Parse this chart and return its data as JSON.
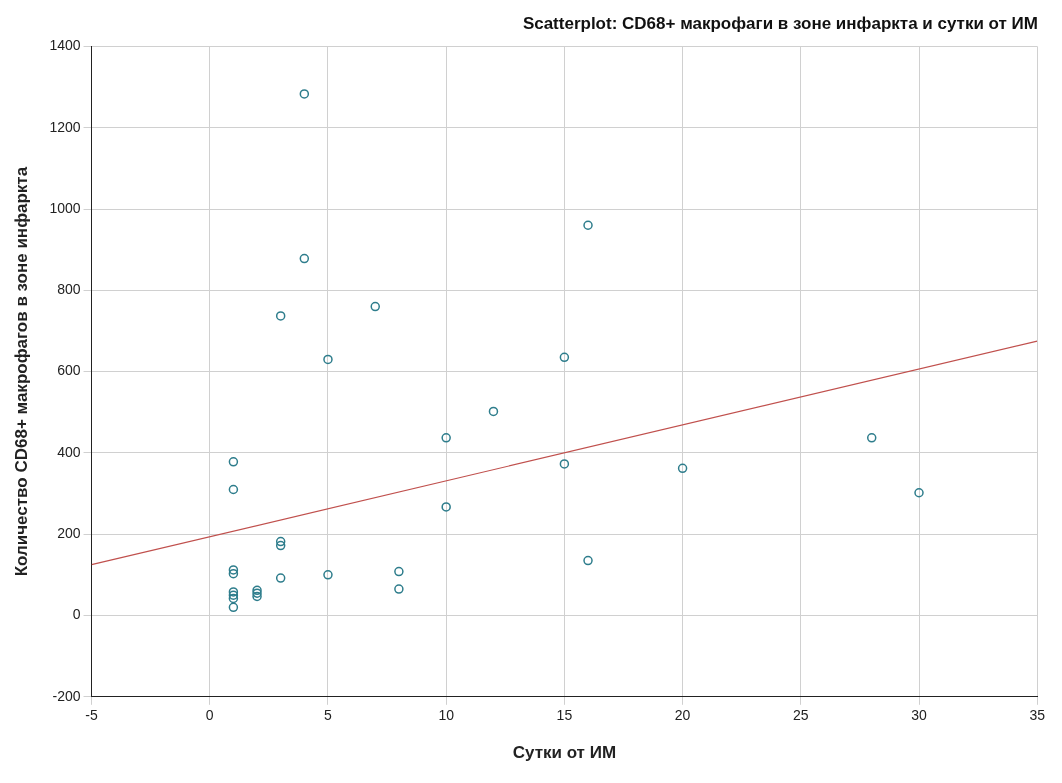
{
  "chart_data": {
    "type": "scatter",
    "title": "Scatterplot: CD68+ макрофаги в зоне инфаркта и сутки от ИМ",
    "xlabel": "Сутки от ИМ",
    "ylabel": "Количество CD68+ макрофагов в зоне инфаркта",
    "series": [
      {
        "marker": "circle",
        "color": "#2e7d8c",
        "x": [
          4,
          16,
          4,
          3,
          7,
          5,
          15,
          12,
          10,
          15,
          20,
          28,
          30,
          10,
          16,
          1,
          1,
          1,
          1,
          1,
          1,
          1,
          1,
          2,
          2,
          2,
          3,
          3,
          3,
          5,
          8,
          8
        ],
        "values": [
          1283,
          960,
          878,
          737,
          760,
          630,
          635,
          502,
          437,
          373,
          362,
          437,
          302,
          267,
          135,
          378,
          310,
          112,
          103,
          58,
          50,
          42,
          20,
          62,
          55,
          47,
          182,
          172,
          92,
          100,
          108,
          65
        ]
      },
      {
        "type": "line",
        "marker": "none",
        "color": "#c0504d",
        "x": [
          -5,
          35
        ],
        "values": [
          125,
          675
        ]
      }
    ],
    "xlim": [
      -5,
      35
    ],
    "xticks": [
      -5,
      0,
      5,
      10,
      15,
      20,
      25,
      30,
      35
    ],
    "ylim": [
      -200,
      1400
    ],
    "yticks": [
      -200,
      0,
      200,
      400,
      600,
      800,
      1000,
      1200,
      1400
    ],
    "grid": true
  }
}
